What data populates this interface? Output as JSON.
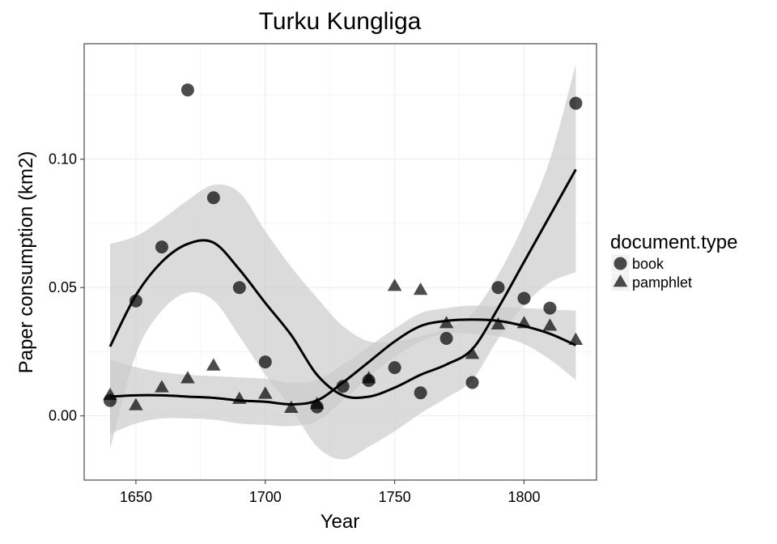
{
  "chart_data": {
    "type": "scatter",
    "title": "Turku Kungliga",
    "xlabel": "Year",
    "ylabel": "Paper consumption (km2)",
    "xlim": [
      1630,
      1828
    ],
    "ylim": [
      -0.025,
      0.145
    ],
    "x_ticks": [
      1650,
      1700,
      1750,
      1800
    ],
    "y_ticks": [
      0.0,
      0.05,
      0.1
    ],
    "x_tick_labels": [
      "1650",
      "1700",
      "1750",
      "1800"
    ],
    "y_tick_labels": [
      "0.00",
      "0.05",
      "0.10"
    ],
    "grid": true,
    "legend": {
      "title": "document.type",
      "position": "right",
      "entries": [
        {
          "label": "book",
          "shape": "circle"
        },
        {
          "label": "pamphlet",
          "shape": "triangle"
        }
      ]
    },
    "series": [
      {
        "name": "book",
        "shape": "circle",
        "points": [
          [
            1640,
            0.006
          ],
          [
            1650,
            0.0448
          ],
          [
            1660,
            0.0658
          ],
          [
            1670,
            0.127
          ],
          [
            1680,
            0.085
          ],
          [
            1690,
            0.05
          ],
          [
            1700,
            0.021
          ],
          [
            1720,
            0.0035
          ],
          [
            1730,
            0.0115
          ],
          [
            1740,
            0.0138
          ],
          [
            1750,
            0.0188
          ],
          [
            1760,
            0.009
          ],
          [
            1770,
            0.0302
          ],
          [
            1780,
            0.013
          ],
          [
            1790,
            0.05
          ],
          [
            1800,
            0.0458
          ],
          [
            1810,
            0.042
          ],
          [
            1820,
            0.1218
          ]
        ],
        "smooth": [
          [
            1640,
            0.027
          ],
          [
            1650,
            0.047
          ],
          [
            1660,
            0.06
          ],
          [
            1670,
            0.067
          ],
          [
            1680,
            0.0675
          ],
          [
            1690,
            0.057
          ],
          [
            1700,
            0.044
          ],
          [
            1710,
            0.0315
          ],
          [
            1720,
            0.016
          ],
          [
            1730,
            0.008
          ],
          [
            1740,
            0.0075
          ],
          [
            1750,
            0.011
          ],
          [
            1760,
            0.016
          ],
          [
            1770,
            0.02
          ],
          [
            1780,
            0.026
          ],
          [
            1790,
            0.042
          ],
          [
            1800,
            0.06
          ],
          [
            1810,
            0.078
          ],
          [
            1820,
            0.096
          ]
        ],
        "ci_upper": [
          [
            1640,
            0.067
          ],
          [
            1650,
            0.07
          ],
          [
            1660,
            0.0765
          ],
          [
            1670,
            0.084
          ],
          [
            1680,
            0.09
          ],
          [
            1690,
            0.087
          ],
          [
            1700,
            0.072
          ],
          [
            1710,
            0.058
          ],
          [
            1720,
            0.046
          ],
          [
            1730,
            0.035
          ],
          [
            1740,
            0.029
          ],
          [
            1750,
            0.029
          ],
          [
            1760,
            0.031
          ],
          [
            1770,
            0.034
          ],
          [
            1780,
            0.04
          ],
          [
            1790,
            0.055
          ],
          [
            1800,
            0.075
          ],
          [
            1810,
            0.1
          ],
          [
            1820,
            0.137
          ]
        ],
        "ci_lower": [
          [
            1640,
            -0.013
          ],
          [
            1650,
            0.024
          ],
          [
            1660,
            0.041
          ],
          [
            1670,
            0.048
          ],
          [
            1680,
            0.045
          ],
          [
            1690,
            0.031
          ],
          [
            1700,
            0.016
          ],
          [
            1710,
            0.003
          ],
          [
            1720,
            -0.012
          ],
          [
            1730,
            -0.017
          ],
          [
            1740,
            -0.012
          ],
          [
            1750,
            -0.006
          ],
          [
            1760,
            0.001
          ],
          [
            1770,
            0.007
          ],
          [
            1780,
            0.014
          ],
          [
            1790,
            0.03
          ],
          [
            1800,
            0.043
          ],
          [
            1810,
            0.052
          ],
          [
            1820,
            0.056
          ]
        ]
      },
      {
        "name": "pamphlet",
        "shape": "triangle",
        "points": [
          [
            1640,
            0.008
          ],
          [
            1650,
            0.004
          ],
          [
            1660,
            0.011
          ],
          [
            1670,
            0.0145
          ],
          [
            1680,
            0.0195
          ],
          [
            1690,
            0.0065
          ],
          [
            1700,
            0.0085
          ],
          [
            1710,
            0.003
          ],
          [
            1720,
            0.0045
          ],
          [
            1740,
            0.0145
          ],
          [
            1750,
            0.0505
          ],
          [
            1760,
            0.049
          ],
          [
            1770,
            0.036
          ],
          [
            1780,
            0.024
          ],
          [
            1790,
            0.0355
          ],
          [
            1800,
            0.036
          ],
          [
            1810,
            0.035
          ],
          [
            1820,
            0.0295
          ]
        ],
        "smooth": [
          [
            1640,
            0.0075
          ],
          [
            1650,
            0.008
          ],
          [
            1660,
            0.008
          ],
          [
            1670,
            0.0075
          ],
          [
            1680,
            0.007
          ],
          [
            1690,
            0.006
          ],
          [
            1700,
            0.0055
          ],
          [
            1710,
            0.0045
          ],
          [
            1720,
            0.006
          ],
          [
            1730,
            0.013
          ],
          [
            1740,
            0.021
          ],
          [
            1750,
            0.029
          ],
          [
            1760,
            0.035
          ],
          [
            1770,
            0.037
          ],
          [
            1780,
            0.0375
          ],
          [
            1790,
            0.037
          ],
          [
            1800,
            0.035
          ],
          [
            1810,
            0.032
          ],
          [
            1820,
            0.0275
          ]
        ],
        "ci_upper": [
          [
            1640,
            0.022
          ],
          [
            1650,
            0.019
          ],
          [
            1660,
            0.017
          ],
          [
            1670,
            0.016
          ],
          [
            1680,
            0.0155
          ],
          [
            1690,
            0.015
          ],
          [
            1700,
            0.0145
          ],
          [
            1710,
            0.013
          ],
          [
            1720,
            0.014
          ],
          [
            1730,
            0.02
          ],
          [
            1740,
            0.027
          ],
          [
            1750,
            0.034
          ],
          [
            1760,
            0.04
          ],
          [
            1770,
            0.042
          ],
          [
            1780,
            0.043
          ],
          [
            1790,
            0.0425
          ],
          [
            1800,
            0.042
          ],
          [
            1810,
            0.0415
          ],
          [
            1820,
            0.041
          ]
        ],
        "ci_lower": [
          [
            1640,
            -0.007
          ],
          [
            1650,
            -0.003
          ],
          [
            1660,
            -0.001
          ],
          [
            1670,
            -0.001
          ],
          [
            1680,
            -0.0015
          ],
          [
            1690,
            -0.003
          ],
          [
            1700,
            -0.0035
          ],
          [
            1710,
            -0.004
          ],
          [
            1720,
            -0.002
          ],
          [
            1730,
            0.006
          ],
          [
            1740,
            0.015
          ],
          [
            1750,
            0.023
          ],
          [
            1760,
            0.029
          ],
          [
            1770,
            0.032
          ],
          [
            1780,
            0.032
          ],
          [
            1790,
            0.031
          ],
          [
            1800,
            0.028
          ],
          [
            1810,
            0.022
          ],
          [
            1820,
            0.014
          ]
        ]
      }
    ],
    "colors": {
      "ribbon": "#cccccc",
      "line": "#000000",
      "point_fill": "#000000",
      "panel_border": "#6e6e6e",
      "grid_major": "#ebebeb",
      "grid_minor": "#f5f5f5"
    }
  }
}
